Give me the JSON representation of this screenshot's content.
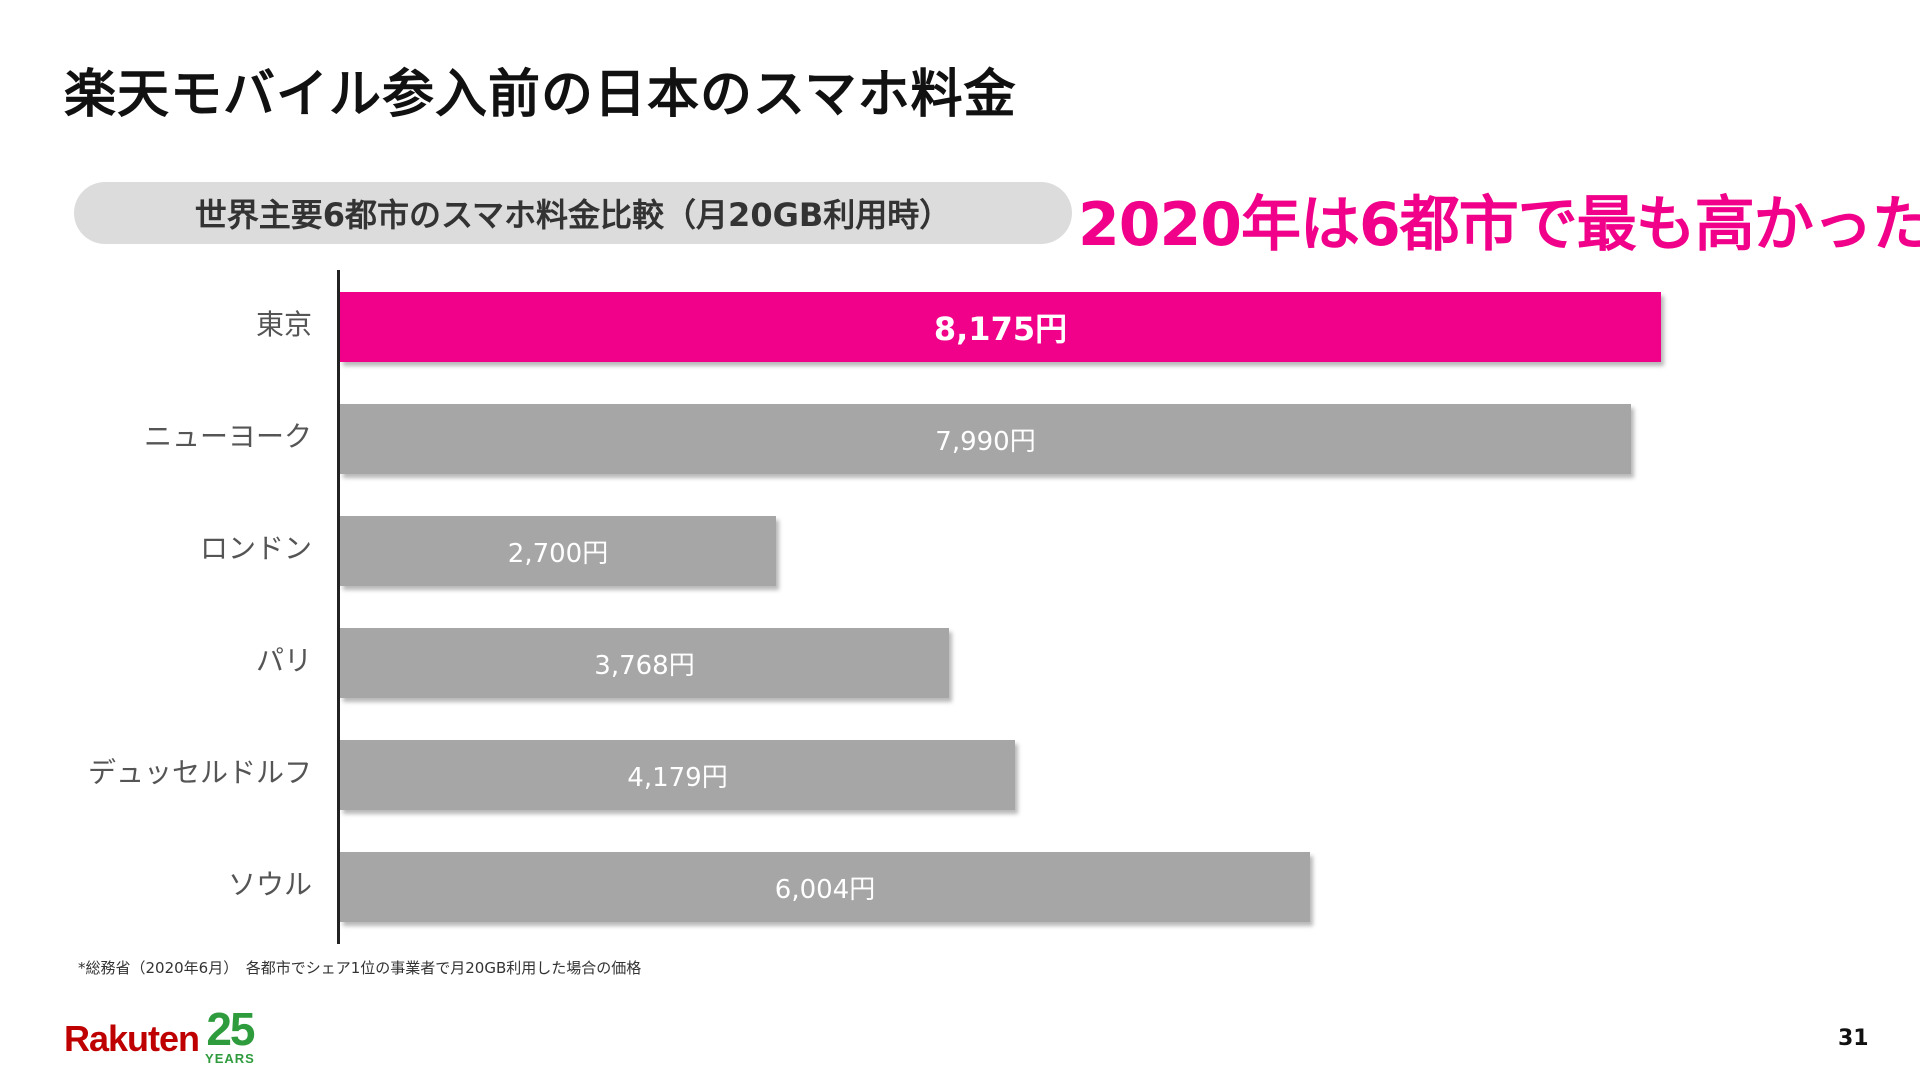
{
  "slide": {
    "title": "楽天モバイル参入前の日本のスマホ料金",
    "headline": "2020年は6都市で最も高かった",
    "footnote": "*総務省（2020年6月）　各都市でシェア1位の事業者で月20GB利用した場合の価格",
    "page_number": "31",
    "logo": {
      "word": "Rakuten",
      "number": "25",
      "years": "YEARS"
    }
  },
  "chart_data": {
    "type": "bar",
    "orientation": "horizontal",
    "title": "世界主要6都市のスマホ料金比較（月20GB利用時）",
    "categories": [
      "東京",
      "ニューヨーク",
      "ロンドン",
      "パリ",
      "デュッセルドルフ",
      "ソウル"
    ],
    "values": [
      8175,
      7990,
      2700,
      3768,
      4179,
      6004
    ],
    "data_labels": [
      "8,175円",
      "7,990円",
      "2,700円",
      "3,768円",
      "4,179円",
      "6,004円"
    ],
    "unit": "円",
    "highlight_index": 0,
    "colors": {
      "highlight": "#f1008a",
      "default": "#a6a6a6",
      "headline": "#f1008a",
      "logo_red": "#bf0000",
      "logo_green": "#2e9c3c"
    },
    "xlim": [
      0,
      8175
    ],
    "grid": false
  }
}
